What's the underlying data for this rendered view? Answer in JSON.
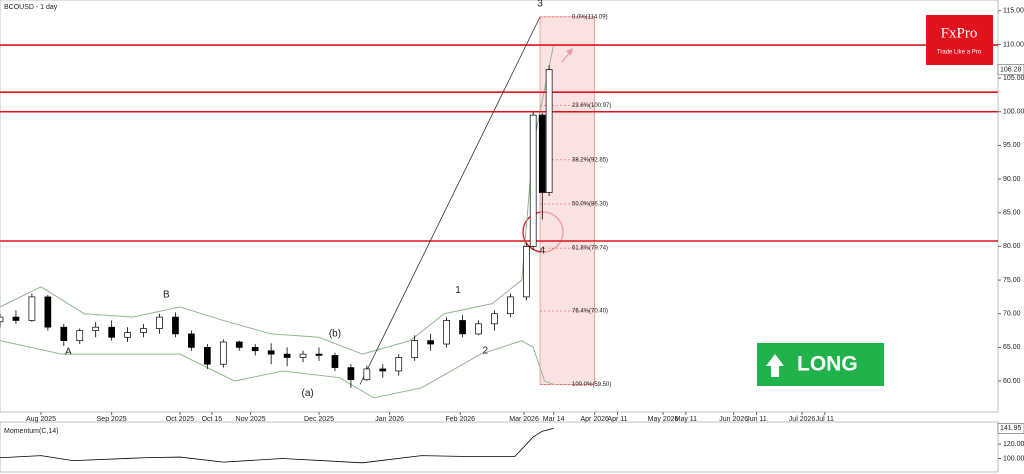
{
  "chart_data": [
    {
      "type": "candlestick",
      "title": "BCOUSD - 1 day",
      "xlim": [
        "2025-07-14",
        "2026-09-25"
      ],
      "xticks": [
        {
          "value": "2025-08-01",
          "label": "Aug 2025"
        },
        {
          "value": "2025-09-01",
          "label": "Sep 2025"
        },
        {
          "value": "2025-10-01",
          "label": "Oct 2025"
        },
        {
          "value": "2025-10-15",
          "label": "Oct 15"
        },
        {
          "value": "2025-11-01",
          "label": "Nov 2025"
        },
        {
          "value": "2025-12-01",
          "label": "Dec 2025"
        },
        {
          "value": "2026-01-01",
          "label": "Jan 2026"
        },
        {
          "value": "2026-02-01",
          "label": "Feb 2026"
        },
        {
          "value": "2026-03-01",
          "label": "Mar 2026"
        },
        {
          "value": "2026-03-14",
          "label": "Mar 14"
        },
        {
          "value": "2026-04-01",
          "label": "Apr 2026"
        },
        {
          "value": "2026-04-11",
          "label": "Apr 11"
        },
        {
          "value": "2026-05-01",
          "label": "May 2026"
        },
        {
          "value": "2026-05-11",
          "label": "May 11"
        },
        {
          "value": "2026-06-01",
          "label": "Jun 2026"
        },
        {
          "value": "2026-06-11",
          "label": "Jun 11"
        },
        {
          "value": "2026-07-01",
          "label": "Jul 2026"
        },
        {
          "value": "2026-07-11",
          "label": "Jul 11"
        }
      ],
      "ylim": [
        55.7,
        116.3
      ],
      "yticks": [
        {
          "value": 60,
          "label": "60.00"
        },
        {
          "value": 65,
          "label": "65.00"
        },
        {
          "value": 70,
          "label": "70.00"
        },
        {
          "value": 75,
          "label": "75.00"
        },
        {
          "value": 80,
          "label": "80.00"
        },
        {
          "value": 85,
          "label": "85.00"
        },
        {
          "value": 90,
          "label": "90.00"
        },
        {
          "value": 95,
          "label": "95.00"
        },
        {
          "value": 100,
          "label": "100.00"
        },
        {
          "value": 105,
          "label": "105.00"
        },
        {
          "value": 110,
          "label": "110.00"
        },
        {
          "value": 115,
          "label": "115.00"
        }
      ],
      "last_price": 106.28,
      "x": [
        "2025-07-14",
        "2025-07-21",
        "2025-07-28",
        "2025-08-04",
        "2025-08-11",
        "2025-08-18",
        "2025-08-25",
        "2025-09-01",
        "2025-09-08",
        "2025-09-15",
        "2025-09-22",
        "2025-09-29",
        "2025-10-06",
        "2025-10-13",
        "2025-10-20",
        "2025-10-27",
        "2025-11-03",
        "2025-11-10",
        "2025-11-17",
        "2025-11-24",
        "2025-12-01",
        "2025-12-08",
        "2025-12-15",
        "2025-12-22",
        "2025-12-29",
        "2026-01-05",
        "2026-01-12",
        "2026-01-19",
        "2026-01-26",
        "2026-02-02",
        "2026-02-09",
        "2026-02-16",
        "2026-02-23",
        "2026-03-02",
        "2026-03-05",
        "2026-03-09",
        "2026-03-12"
      ],
      "open": [
        68.8,
        69.5,
        69.0,
        72.5,
        68.0,
        66.0,
        67.5,
        68.0,
        66.5,
        67.2,
        67.8,
        69.5,
        67.0,
        65.0,
        62.5,
        65.8,
        65.0,
        64.5,
        64.0,
        63.5,
        64.0,
        63.8,
        62.0,
        60.2,
        61.8,
        61.5,
        63.5,
        66.0,
        65.5,
        69.0,
        67.0,
        68.5,
        70.0,
        72.5,
        80.0,
        99.5,
        88.0
      ],
      "high": [
        70.0,
        70.5,
        73.0,
        72.8,
        68.5,
        67.8,
        68.8,
        69.0,
        68.0,
        68.5,
        70.0,
        70.2,
        67.5,
        65.5,
        66.2,
        66.0,
        65.5,
        65.6,
        65.0,
        64.5,
        65.0,
        64.2,
        62.5,
        62.3,
        62.5,
        64.0,
        66.8,
        67.0,
        69.5,
        69.8,
        69.0,
        70.5,
        73.0,
        80.5,
        100.0,
        99.8,
        106.9
      ],
      "low": [
        68.0,
        68.5,
        68.8,
        67.5,
        65.2,
        65.5,
        66.5,
        66.0,
        65.8,
        66.5,
        67.0,
        66.5,
        64.5,
        61.8,
        62.0,
        64.5,
        63.8,
        62.5,
        62.2,
        62.8,
        63.0,
        61.5,
        59.0,
        60.0,
        60.5,
        60.8,
        63.0,
        64.5,
        65.0,
        66.5,
        66.8,
        67.5,
        69.5,
        72.0,
        79.5,
        84.0,
        87.5
      ],
      "close": [
        69.5,
        69.0,
        72.5,
        68.0,
        66.0,
        67.5,
        68.0,
        66.5,
        67.2,
        67.8,
        69.5,
        67.0,
        65.0,
        62.5,
        65.8,
        65.0,
        64.5,
        64.0,
        63.5,
        64.0,
        63.8,
        62.0,
        60.2,
        61.8,
        61.5,
        63.5,
        66.0,
        65.5,
        69.0,
        67.0,
        68.5,
        70.0,
        72.5,
        80.0,
        99.5,
        88.0,
        106.28
      ],
      "bands": [
        {
          "x": [
            "2025-07-14",
            "2025-08-01",
            "2025-08-20",
            "2025-09-10",
            "2025-10-01",
            "2025-10-20",
            "2025-11-10",
            "2025-12-01",
            "2025-12-20",
            "2026-01-10",
            "2026-01-25",
            "2026-02-15",
            "2026-02-28",
            "2026-03-05",
            "2026-03-14"
          ],
          "values": [
            71,
            74,
            70,
            69.5,
            71,
            69,
            67,
            66.5,
            64,
            66,
            70,
            71.5,
            75,
            95,
            110
          ]
        },
        {
          "x": [
            "2025-07-14",
            "2025-08-10",
            "2025-09-01",
            "2025-10-01",
            "2025-10-25",
            "2025-11-15",
            "2025-12-10",
            "2025-12-25",
            "2026-01-15",
            "2026-02-10",
            "2026-02-28",
            "2026-03-05",
            "2026-03-10",
            "2026-03-14"
          ],
          "values": [
            66,
            64,
            64,
            64,
            60,
            61.5,
            60.5,
            57.5,
            59,
            64,
            66,
            65,
            60,
            59.5
          ]
        }
      ],
      "band_color": "#8fb88f",
      "levels": [
        109.9,
        102.9,
        100.0,
        80.8
      ],
      "level_color": "#e0141e",
      "trend_line": {
        "x": [
          "2025-12-19",
          "2026-03-08"
        ],
        "values": [
          59.5,
          114.09
        ]
      },
      "fib": {
        "x": [
          "2026-03-08",
          "2026-04-01"
        ],
        "levels": [
          {
            "value": 114.09,
            "label": "0.0%(114.09)"
          },
          {
            "value": 100.97,
            "label": "23.6%(100.97)"
          },
          {
            "value": 92.85,
            "label": "38.2%(92.85)"
          },
          {
            "value": 86.3,
            "label": "50.0%(86.30)"
          },
          {
            "value": 79.74,
            "label": "61.8%(79.74)"
          },
          {
            "value": 70.4,
            "label": "76.4%(70.40)"
          },
          {
            "value": 59.5,
            "label": "100.0%(59.50)"
          }
        ]
      },
      "annotations": [
        {
          "text": "3",
          "x": "2026-03-08",
          "y": 116
        },
        {
          "text": "1",
          "x": "2026-01-31",
          "y": 73.5
        },
        {
          "text": "2",
          "x": "2026-02-12",
          "y": 64.5
        },
        {
          "text": "4",
          "x": "2026-03-09",
          "y": 79.3
        },
        {
          "text": "A",
          "x": "2025-08-13",
          "y": 64.3
        },
        {
          "text": "B",
          "x": "2025-09-25",
          "y": 72.8
        },
        {
          "text": "(a)",
          "x": "2025-11-26",
          "y": 58.2
        },
        {
          "text": "(b)",
          "x": "2025-12-08",
          "y": 67.0
        }
      ]
    },
    {
      "type": "line",
      "title": "Momentum(C,14)",
      "ylim": [
        84,
        148
      ],
      "yticks": [
        {
          "value": 100,
          "label": "100.00"
        },
        {
          "value": 120,
          "label": "120.00"
        }
      ],
      "last_value": 141.95,
      "x": [
        "2025-07-14",
        "2025-08-01",
        "2025-08-15",
        "2025-09-15",
        "2025-10-01",
        "2025-10-20",
        "2025-11-15",
        "2025-12-20",
        "2026-01-15",
        "2026-02-01",
        "2026-02-25",
        "2026-03-05",
        "2026-03-09",
        "2026-03-14"
      ],
      "values": [
        101,
        104,
        97,
        101,
        102,
        95,
        100,
        94,
        104,
        103,
        103,
        130,
        138,
        141.95
      ],
      "color": "#000000"
    }
  ],
  "logo": {
    "name": "FxPro",
    "tagline": "Trade Like a Pro"
  },
  "signal": "LONG"
}
